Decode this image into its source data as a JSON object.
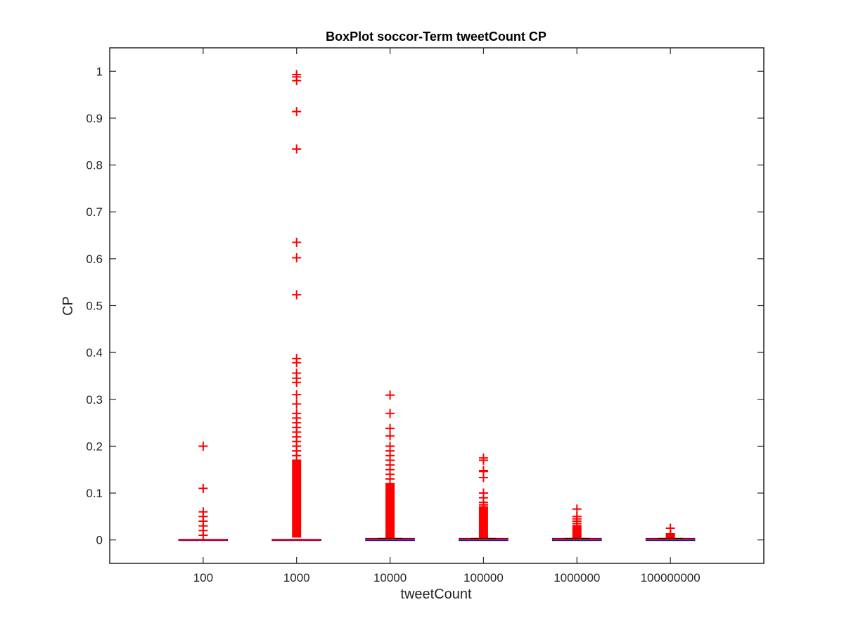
{
  "chart_data": {
    "type": "box",
    "title": "BoxPlot soccor-Term tweetCount CP",
    "xlabel": "tweetCount",
    "ylabel": "CP",
    "ylim": [
      -0.05,
      1.05
    ],
    "yticks": [
      0,
      0.1,
      0.2,
      0.3,
      0.4,
      0.5,
      0.6,
      0.7,
      0.8,
      0.9,
      1
    ],
    "ytick_labels": [
      "0",
      "0.1",
      "0.2",
      "0.3",
      "0.4",
      "0.5",
      "0.6",
      "0.7",
      "0.8",
      "0.9",
      "1"
    ],
    "grid": false,
    "categories": [
      "100",
      "1000",
      "10000",
      "100000",
      "1000000",
      "100000000"
    ],
    "colors": {
      "outlier": "#ff0000",
      "median": "#ff0000",
      "box": "#1f1f9f",
      "axis": "#262626"
    },
    "groups": [
      {
        "category": "100",
        "q1": 0,
        "median": 0,
        "q3": 0,
        "whisker_low": 0,
        "whisker_high": 0,
        "outliers": [
          0.2,
          0.11,
          0.06,
          0.05,
          0.04,
          0.03,
          0.02,
          0.01
        ]
      },
      {
        "category": "1000",
        "q1": 0,
        "median": 0,
        "q3": 0,
        "whisker_low": 0,
        "whisker_high": 0,
        "outliers": [
          0.993,
          0.988,
          0.98,
          0.914,
          0.834,
          0.635,
          0.602,
          0.523,
          0.387,
          0.378,
          0.356,
          0.345,
          0.336,
          0.31,
          0.29,
          0.27,
          0.26,
          0.25,
          0.24,
          0.23,
          0.22,
          0.21,
          0.2,
          0.19,
          0.18,
          0.17
        ],
        "outlier_band": [
          0.005,
          0.17
        ]
      },
      {
        "category": "10000",
        "q1": 0,
        "median": 0.001,
        "q3": 0.002,
        "whisker_low": 0,
        "whisker_high": 0.003,
        "outliers": [
          0.309,
          0.27,
          0.238,
          0.222,
          0.2,
          0.19,
          0.18,
          0.17,
          0.16,
          0.15,
          0.14,
          0.13,
          0.12
        ],
        "outlier_band": [
          0.004,
          0.12
        ]
      },
      {
        "category": "100000",
        "q1": 0,
        "median": 0.001,
        "q3": 0.002,
        "whisker_low": 0,
        "whisker_high": 0.003,
        "outliers": [
          0.175,
          0.17,
          0.148,
          0.146,
          0.133,
          0.1,
          0.09,
          0.08,
          0.075
        ],
        "outlier_band": [
          0.004,
          0.072
        ]
      },
      {
        "category": "1000000",
        "q1": 0,
        "median": 0.001,
        "q3": 0.002,
        "whisker_low": 0,
        "whisker_high": 0.003,
        "outliers": [
          0.066,
          0.05,
          0.045,
          0.04,
          0.035
        ],
        "outlier_band": [
          0.004,
          0.032
        ]
      },
      {
        "category": "100000000",
        "q1": 0,
        "median": 0.001,
        "q3": 0.002,
        "whisker_low": 0,
        "whisker_high": 0.003,
        "outliers": [
          0.025,
          0.013,
          0.012,
          0.011,
          0.01
        ],
        "outlier_band": [
          0.004,
          0.01
        ]
      }
    ]
  }
}
